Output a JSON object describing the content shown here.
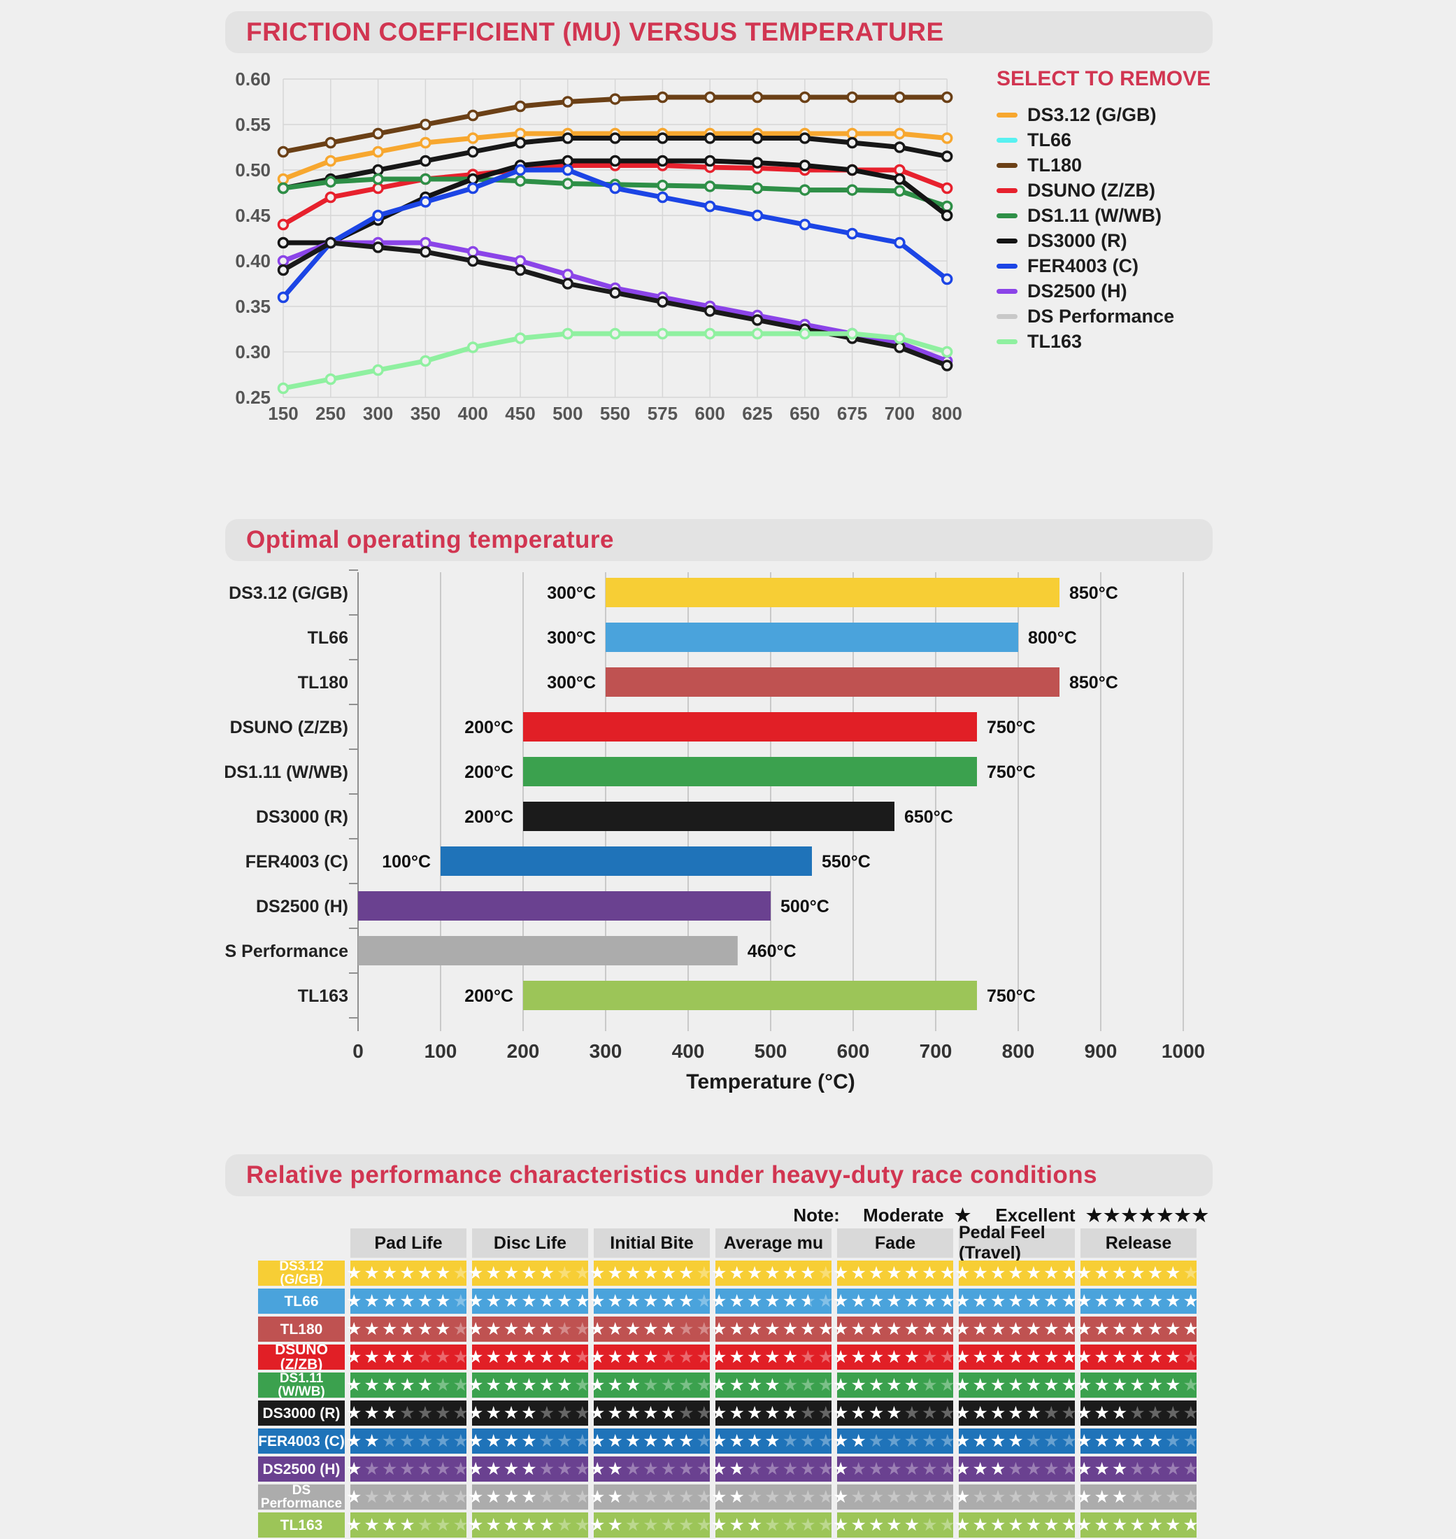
{
  "page": {
    "background": "#efefef",
    "accent_red": "#d13551"
  },
  "chart_data": [
    {
      "type": "line",
      "title": "FRICTION COEFFICIENT (MU) VERSUS TEMPERATURE",
      "legend_title": "SELECT TO REMOVE",
      "legend_position": "right",
      "grid": true,
      "x_categories": [
        "150",
        "250",
        "300",
        "350",
        "400",
        "450",
        "500",
        "550",
        "575",
        "600",
        "625",
        "650",
        "675",
        "700",
        "800"
      ],
      "y_ticks": [
        "0.60",
        "0.55",
        "0.50",
        "0.45",
        "0.40",
        "0.35",
        "0.30",
        "0.25"
      ],
      "ylim": [
        0.25,
        0.6
      ],
      "series": [
        {
          "name": "DS3.12 (G/GB)",
          "legend_color": "#F7A72F",
          "line_color": "#F7A72F",
          "values": [
            0.49,
            0.51,
            0.52,
            0.53,
            0.535,
            0.54,
            0.54,
            0.54,
            0.54,
            0.54,
            0.54,
            0.54,
            0.54,
            0.54,
            0.535
          ]
        },
        {
          "name": "TL66",
          "legend_color": "#58F1F1",
          "line_color": "#171717",
          "values": [
            0.48,
            0.49,
            0.5,
            0.51,
            0.52,
            0.53,
            0.535,
            0.535,
            0.535,
            0.535,
            0.535,
            0.535,
            0.53,
            0.525,
            0.515
          ]
        },
        {
          "name": "TL180",
          "legend_color": "#6B4016",
          "line_color": "#6B4016",
          "values": [
            0.52,
            0.53,
            0.54,
            0.55,
            0.56,
            0.57,
            0.575,
            0.578,
            0.58,
            0.58,
            0.58,
            0.58,
            0.58,
            0.58,
            0.58
          ]
        },
        {
          "name": "DSUNO (Z/ZB)",
          "legend_color": "#E7212D",
          "line_color": "#E7212D",
          "values": [
            0.44,
            0.47,
            0.48,
            0.49,
            0.495,
            0.5,
            0.505,
            0.505,
            0.505,
            0.503,
            0.502,
            0.5,
            0.5,
            0.5,
            0.48
          ]
        },
        {
          "name": "DS1.11 (W/WB)",
          "legend_color": "#2E8F47",
          "line_color": "#2E8F47",
          "values": [
            0.48,
            0.487,
            0.49,
            0.49,
            0.49,
            0.488,
            0.485,
            0.484,
            0.483,
            0.482,
            0.48,
            0.478,
            0.478,
            0.477,
            0.46
          ]
        },
        {
          "name": "DS3000 (R)",
          "legend_color": "#141414",
          "line_color": "#141414",
          "values": [
            0.42,
            0.42,
            0.445,
            0.47,
            0.49,
            0.505,
            0.51,
            0.51,
            0.51,
            0.51,
            0.508,
            0.505,
            0.5,
            0.49,
            0.45
          ]
        },
        {
          "name": "FER4003 (C)",
          "legend_color": "#1C45E5",
          "line_color": "#1C45E5",
          "values": [
            0.36,
            0.42,
            0.45,
            0.465,
            0.48,
            0.5,
            0.5,
            0.48,
            0.47,
            0.46,
            0.45,
            0.44,
            0.43,
            0.42,
            0.38
          ]
        },
        {
          "name": "DS2500 (H)",
          "legend_color": "#8B44E8",
          "line_color": "#8B44E8",
          "values": [
            0.4,
            0.42,
            0.42,
            0.42,
            0.41,
            0.4,
            0.385,
            0.37,
            0.36,
            0.35,
            0.34,
            0.33,
            0.32,
            0.31,
            0.29
          ]
        },
        {
          "name": "DS Performance",
          "legend_color": "#C8C8C8",
          "line_color": "#1A1A1A",
          "values": [
            0.39,
            0.42,
            0.415,
            0.41,
            0.4,
            0.39,
            0.375,
            0.365,
            0.355,
            0.345,
            0.335,
            0.325,
            0.315,
            0.305,
            0.285
          ]
        },
        {
          "name": "TL163",
          "legend_color": "#8FF0A0",
          "line_color": "#8FF0A0",
          "values": [
            0.26,
            0.27,
            0.28,
            0.29,
            0.305,
            0.315,
            0.32,
            0.32,
            0.32,
            0.32,
            0.32,
            0.32,
            0.32,
            0.315,
            0.3
          ]
        }
      ]
    },
    {
      "type": "bar",
      "orientation": "horizontal",
      "title": "Optimal operating temperature",
      "xlabel": "Temperature (°C)",
      "xlim": [
        0,
        1000
      ],
      "x_ticks": [
        "0",
        "100",
        "200",
        "300",
        "400",
        "500",
        "600",
        "700",
        "800",
        "900",
        "1000"
      ],
      "grid": true,
      "bars": [
        {
          "name": "DS3.12 (G/GB)",
          "color": "#F7CE35",
          "range": [
            300,
            850
          ],
          "start_label": "300°C",
          "end_label": "850°C"
        },
        {
          "name": "TL66",
          "color": "#4AA3DC",
          "range": [
            300,
            800
          ],
          "start_label": "300°C",
          "end_label": "800°C"
        },
        {
          "name": "TL180",
          "color": "#BF5251",
          "range": [
            300,
            850
          ],
          "start_label": "300°C",
          "end_label": "850°C"
        },
        {
          "name": "DSUNO (Z/ZB)",
          "color": "#E11F26",
          "range": [
            200,
            750
          ],
          "start_label": "200°C",
          "end_label": "750°C"
        },
        {
          "name": "DS1.11 (W/WB)",
          "color": "#3BA14E",
          "range": [
            200,
            750
          ],
          "start_label": "200°C",
          "end_label": "750°C"
        },
        {
          "name": "DS3000 (R)",
          "color": "#1B1B1B",
          "range": [
            200,
            650
          ],
          "start_label": "200°C",
          "end_label": "650°C"
        },
        {
          "name": "FER4003 (C)",
          "color": "#1F73B9",
          "range": [
            100,
            550
          ],
          "start_label": "100°C",
          "end_label": "550°C"
        },
        {
          "name": "DS2500 (H)",
          "color": "#6A4190",
          "range": [
            0,
            500
          ],
          "start_label": "",
          "end_label": "500°C"
        },
        {
          "name": "DS Performance",
          "color": "#ACACAC",
          "range": [
            0,
            460
          ],
          "start_label": "",
          "end_label": "460°C"
        },
        {
          "name": "TL163",
          "color": "#9CC558",
          "range": [
            200,
            750
          ],
          "start_label": "200°C",
          "end_label": "750°C"
        }
      ]
    },
    {
      "type": "table",
      "title": "Relative performance characteristics under heavy-duty race conditions",
      "note": {
        "prefix": "Note:",
        "moderate": "Moderate",
        "moderate_stars": "★",
        "excellent": "Excellent",
        "excellent_stars": "★★★★★★★"
      },
      "max_stars": 7,
      "columns": [
        "Pad Life",
        "Disc Life",
        "Initial Bite",
        "Average mu",
        "Fade",
        "Pedal Feel (Travel)",
        "Release"
      ],
      "rows": [
        {
          "name": "DS3.12 (G/GB)",
          "color": "#F7CE35",
          "ratings": [
            6,
            5,
            6,
            6,
            7,
            7,
            6
          ]
        },
        {
          "name": "TL66",
          "color": "#4AA3DC",
          "ratings": [
            6,
            7,
            6,
            5.5,
            7,
            7,
            7
          ]
        },
        {
          "name": "TL180",
          "color": "#BF5251",
          "ratings": [
            6,
            5,
            5,
            7,
            7,
            7,
            7
          ]
        },
        {
          "name": "DSUNO (Z/ZB)",
          "color": "#E11F26",
          "ratings": [
            4,
            6,
            4,
            5,
            5,
            7,
            6
          ]
        },
        {
          "name": "DS1.11 (W/WB)",
          "color": "#3BA14E",
          "ratings": [
            5,
            6,
            3,
            4,
            5,
            7,
            6
          ]
        },
        {
          "name": "DS3000 (R)",
          "color": "#1B1B1B",
          "ratings": [
            3,
            4,
            5,
            5,
            4,
            5,
            3
          ]
        },
        {
          "name": "FER4003 (C)",
          "color": "#1F73B9",
          "ratings": [
            2,
            4,
            6,
            4,
            2,
            4,
            5
          ]
        },
        {
          "name": "DS2500 (H)",
          "color": "#6A4190",
          "ratings": [
            1,
            4,
            2,
            2,
            1,
            3,
            3
          ]
        },
        {
          "name": "DS Performance",
          "color": "#ACACAC",
          "ratings": [
            1,
            4,
            2,
            2,
            1,
            1,
            3
          ]
        },
        {
          "name": "TL163",
          "color": "#9CC558",
          "ratings": [
            4,
            5,
            2,
            3,
            5,
            7,
            7
          ]
        }
      ]
    }
  ]
}
